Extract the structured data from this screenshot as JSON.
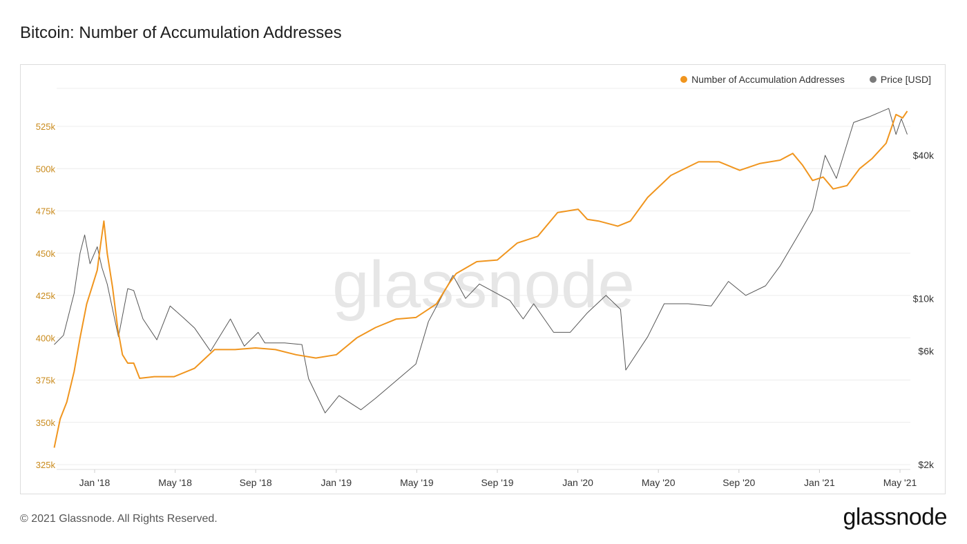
{
  "header": {
    "title": "Bitcoin: Number of Accumulation Addresses"
  },
  "footer": {
    "copyright": "© 2021 Glassnode. All Rights Reserved.",
    "brand": "glassnode"
  },
  "watermark": "glassnode",
  "colors": {
    "accumulation": "#f0951e",
    "price": "#555555",
    "grid": "#ececec",
    "left_tick": "#c98a1b"
  },
  "legend": [
    {
      "label": "Number of Accumulation Addresses",
      "color": "#f0951e"
    },
    {
      "label": "Price [USD]",
      "color": "#7a7a7a"
    }
  ],
  "chart_data": {
    "type": "line",
    "title": "Bitcoin: Number of Accumulation Addresses",
    "x_ticks": [
      "Jan '18",
      "May '18",
      "Sep '18",
      "Jan '19",
      "May '19",
      "Sep '19",
      "Jan '20",
      "May '20",
      "Sep '20",
      "Jan '21",
      "May '21"
    ],
    "y_left": {
      "ticks": [
        "325k",
        "350k",
        "375k",
        "400k",
        "425k",
        "450k",
        "475k",
        "500k",
        "525k"
      ],
      "ylim": [
        325000,
        540000
      ]
    },
    "y_right": {
      "scale": "log",
      "ticks": [
        "$2k",
        "$6k",
        "$10k",
        "$40k"
      ]
    },
    "legend_position": "top-right",
    "grid": true,
    "series": [
      {
        "name": "Number of Accumulation Addresses",
        "axis": "left",
        "points": [
          [
            "2017-11-01",
            335000
          ],
          [
            "2017-11-10",
            352000
          ],
          [
            "2017-11-20",
            362000
          ],
          [
            "2017-12-01",
            380000
          ],
          [
            "2017-12-10",
            400000
          ],
          [
            "2017-12-20",
            420000
          ],
          [
            "2017-12-28",
            430000
          ],
          [
            "2018-01-05",
            440000
          ],
          [
            "2018-01-10",
            455000
          ],
          [
            "2018-01-15",
            469000
          ],
          [
            "2018-01-20",
            450000
          ],
          [
            "2018-01-28",
            430000
          ],
          [
            "2018-02-05",
            405000
          ],
          [
            "2018-02-12",
            390000
          ],
          [
            "2018-02-20",
            385000
          ],
          [
            "2018-03-01",
            385000
          ],
          [
            "2018-03-10",
            376000
          ],
          [
            "2018-04-01",
            377000
          ],
          [
            "2018-05-01",
            377000
          ],
          [
            "2018-06-01",
            382000
          ],
          [
            "2018-07-01",
            393000
          ],
          [
            "2018-08-01",
            393000
          ],
          [
            "2018-09-01",
            394000
          ],
          [
            "2018-10-01",
            393000
          ],
          [
            "2018-11-01",
            390000
          ],
          [
            "2018-12-01",
            388000
          ],
          [
            "2019-01-01",
            390000
          ],
          [
            "2019-02-01",
            400000
          ],
          [
            "2019-03-01",
            406000
          ],
          [
            "2019-04-01",
            411000
          ],
          [
            "2019-05-01",
            412000
          ],
          [
            "2019-06-01",
            420000
          ],
          [
            "2019-06-20",
            432000
          ],
          [
            "2019-07-01",
            438000
          ],
          [
            "2019-08-01",
            445000
          ],
          [
            "2019-09-01",
            446000
          ],
          [
            "2019-10-01",
            456000
          ],
          [
            "2019-11-01",
            460000
          ],
          [
            "2019-12-01",
            474000
          ],
          [
            "2020-01-01",
            476000
          ],
          [
            "2020-01-15",
            470000
          ],
          [
            "2020-02-01",
            469000
          ],
          [
            "2020-03-01",
            466000
          ],
          [
            "2020-03-20",
            469000
          ],
          [
            "2020-04-15",
            483000
          ],
          [
            "2020-05-20",
            496000
          ],
          [
            "2020-07-01",
            504000
          ],
          [
            "2020-08-01",
            504000
          ],
          [
            "2020-09-01",
            499000
          ],
          [
            "2020-10-01",
            503000
          ],
          [
            "2020-11-01",
            505000
          ],
          [
            "2020-11-20",
            509000
          ],
          [
            "2020-12-05",
            502000
          ],
          [
            "2020-12-20",
            493000
          ],
          [
            "2021-01-05",
            495000
          ],
          [
            "2021-01-20",
            488000
          ],
          [
            "2021-02-10",
            490000
          ],
          [
            "2021-03-01",
            500000
          ],
          [
            "2021-03-20",
            506000
          ],
          [
            "2021-04-10",
            515000
          ],
          [
            "2021-04-25",
            532000
          ],
          [
            "2021-05-05",
            530000
          ],
          [
            "2021-05-12",
            534000
          ]
        ]
      },
      {
        "name": "Price [USD]",
        "axis": "right",
        "points": [
          [
            "2017-11-01",
            6400
          ],
          [
            "2017-11-15",
            7000
          ],
          [
            "2017-12-01",
            10500
          ],
          [
            "2017-12-10",
            15500
          ],
          [
            "2017-12-17",
            18500
          ],
          [
            "2017-12-25",
            14000
          ],
          [
            "2018-01-05",
            16500
          ],
          [
            "2018-01-12",
            13500
          ],
          [
            "2018-01-20",
            11500
          ],
          [
            "2018-02-06",
            6900
          ],
          [
            "2018-02-20",
            11000
          ],
          [
            "2018-03-01",
            10800
          ],
          [
            "2018-03-15",
            8200
          ],
          [
            "2018-04-05",
            6700
          ],
          [
            "2018-04-25",
            9300
          ],
          [
            "2018-05-15",
            8300
          ],
          [
            "2018-06-01",
            7500
          ],
          [
            "2018-06-25",
            6000
          ],
          [
            "2018-07-25",
            8200
          ],
          [
            "2018-08-15",
            6300
          ],
          [
            "2018-09-05",
            7200
          ],
          [
            "2018-09-15",
            6500
          ],
          [
            "2018-10-15",
            6500
          ],
          [
            "2018-11-10",
            6400
          ],
          [
            "2018-11-20",
            4600
          ],
          [
            "2018-12-15",
            3300
          ],
          [
            "2019-01-05",
            3900
          ],
          [
            "2019-02-07",
            3400
          ],
          [
            "2019-03-01",
            3800
          ],
          [
            "2019-04-01",
            4500
          ],
          [
            "2019-05-01",
            5300
          ],
          [
            "2019-05-20",
            8000
          ],
          [
            "2019-06-26",
            12500
          ],
          [
            "2019-07-15",
            10000
          ],
          [
            "2019-08-05",
            11500
          ],
          [
            "2019-09-20",
            9800
          ],
          [
            "2019-10-10",
            8200
          ],
          [
            "2019-10-26",
            9500
          ],
          [
            "2019-11-25",
            7200
          ],
          [
            "2019-12-20",
            7200
          ],
          [
            "2020-01-15",
            8700
          ],
          [
            "2020-02-12",
            10300
          ],
          [
            "2020-03-05",
            9000
          ],
          [
            "2020-03-13",
            5000
          ],
          [
            "2020-04-15",
            6900
          ],
          [
            "2020-05-10",
            9500
          ],
          [
            "2020-06-15",
            9500
          ],
          [
            "2020-07-20",
            9300
          ],
          [
            "2020-08-15",
            11800
          ],
          [
            "2020-09-10",
            10300
          ],
          [
            "2020-10-10",
            11300
          ],
          [
            "2020-11-01",
            13700
          ],
          [
            "2020-12-01",
            19000
          ],
          [
            "2020-12-20",
            23500
          ],
          [
            "2021-01-08",
            40000
          ],
          [
            "2021-01-25",
            32000
          ],
          [
            "2021-02-20",
            55000
          ],
          [
            "2021-03-15",
            58000
          ],
          [
            "2021-04-14",
            63000
          ],
          [
            "2021-04-25",
            49000
          ],
          [
            "2021-05-03",
            57000
          ],
          [
            "2021-05-12",
            49000
          ]
        ]
      }
    ]
  }
}
